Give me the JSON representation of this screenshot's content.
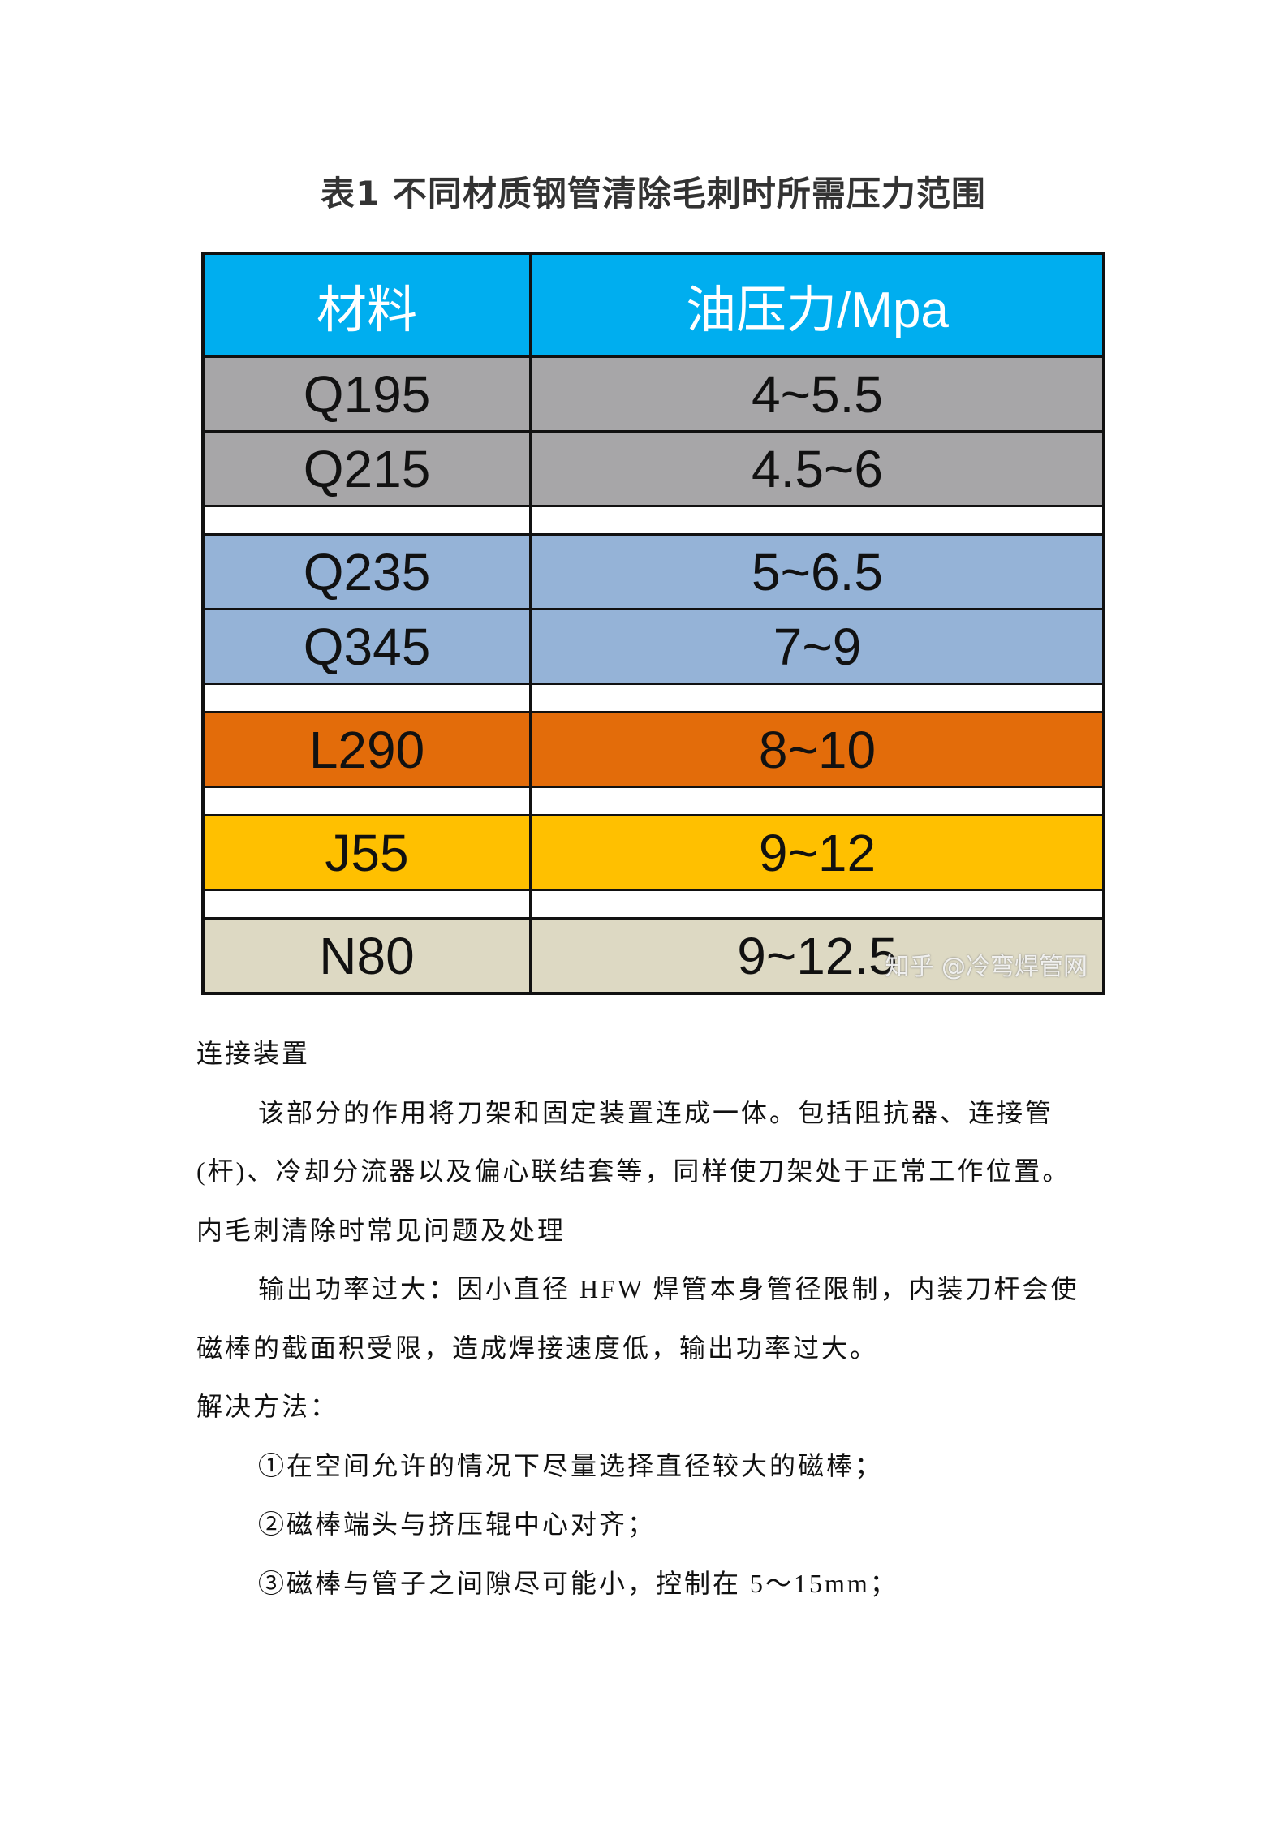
{
  "title": "表1 不同材质钢管清除毛刺时所需压力范围",
  "table": {
    "headers": [
      "材料",
      "油压力/Mpa"
    ],
    "header_color": "#00AEEF",
    "groups": [
      {
        "color": "#A7A6A8",
        "rows": [
          {
            "material": "Q195",
            "pressure": "4~5.5"
          },
          {
            "material": "Q215",
            "pressure": "4.5~6"
          }
        ]
      },
      {
        "color": "#95B3D7",
        "rows": [
          {
            "material": "Q235",
            "pressure": "5~6.5"
          },
          {
            "material": "Q345",
            "pressure": "7~9"
          }
        ]
      },
      {
        "color": "#E36C0A",
        "rows": [
          {
            "material": "L290",
            "pressure": "8~10"
          }
        ]
      },
      {
        "color": "#FFC000",
        "rows": [
          {
            "material": "J55",
            "pressure": "9~12"
          }
        ]
      },
      {
        "color": "#DDD9C3",
        "rows": [
          {
            "material": "N80",
            "pressure": "9~12.5"
          }
        ]
      }
    ],
    "watermark": "知乎 @冷弯焊管网"
  },
  "paragraphs": [
    {
      "text": "连接装置",
      "indent": false
    },
    {
      "text": "该部分的作用将刀架和固定装置连成一体。包括阻抗器、连接管(杆)、冷却分流器以及偏心联结套等，同样使刀架处于正常工作位置。",
      "indent": true
    },
    {
      "text": "内毛刺清除时常见问题及处理",
      "indent": false
    },
    {
      "text": "输出功率过大：因小直径 HFW 焊管本身管径限制，内装刀杆会使磁棒的截面积受限，造成焊接速度低，输出功率过大。",
      "indent": true
    },
    {
      "text": "解决方法：",
      "indent": false
    },
    {
      "text": "①在空间允许的情况下尽量选择直径较大的磁棒；",
      "indent": true
    },
    {
      "text": "②磁棒端头与挤压辊中心对齐；",
      "indent": true
    },
    {
      "text": "③磁棒与管子之间隙尽可能小，控制在 5～15mm；",
      "indent": true
    }
  ]
}
